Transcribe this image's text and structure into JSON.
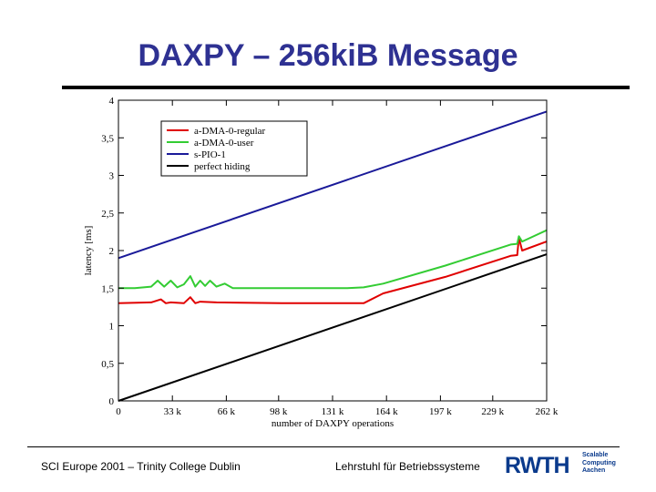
{
  "slide": {
    "title": "DAXPY – 256kiB Message",
    "footer_left": "SCI Europe 2001 – Trinity College Dublin",
    "footer_right": "Lehrstuhl für Betriebssysteme",
    "logo": {
      "main": "RWTH",
      "sub_lines": [
        "Scalable",
        "Computing",
        "Aachen"
      ],
      "color": "#0a3a8c"
    }
  },
  "chart_data": {
    "type": "line",
    "title": "",
    "xlabel": "number of DAXPY operations",
    "ylabel": "latency [ms]",
    "xlim": [
      0,
      262
    ],
    "ylim": [
      0,
      4
    ],
    "x_ticks": [
      0,
      33,
      66,
      98,
      131,
      164,
      197,
      229,
      262
    ],
    "x_tick_labels": [
      "0",
      "33 k",
      "66 k",
      "98 k",
      "131 k",
      "164 k",
      "197 k",
      "229 k",
      "262 k"
    ],
    "y_ticks": [
      0,
      0.5,
      1,
      1.5,
      2,
      2.5,
      3,
      3.5,
      4
    ],
    "y_tick_labels": [
      "0",
      "0,5",
      "1",
      "1,5",
      "2",
      "2,5",
      "3",
      "3,5",
      "4"
    ],
    "grid": false,
    "legend_position": "top-left",
    "series": [
      {
        "name": "a-DMA-0-regular",
        "color": "#e00000",
        "x": [
          0,
          20,
          26,
          29,
          32,
          40,
          44,
          47,
          50,
          60,
          100,
          140,
          150,
          162,
          200,
          240,
          244,
          245,
          247,
          262
        ],
        "y": [
          1.3,
          1.31,
          1.35,
          1.3,
          1.31,
          1.3,
          1.38,
          1.3,
          1.32,
          1.31,
          1.3,
          1.3,
          1.3,
          1.43,
          1.65,
          1.93,
          1.94,
          2.17,
          2.0,
          2.12
        ]
      },
      {
        "name": "a-DMA-0-user",
        "color": "#33cc33",
        "x": [
          0,
          10,
          20,
          24,
          28,
          32,
          36,
          40,
          44,
          47,
          50,
          53,
          56,
          60,
          65,
          70,
          100,
          140,
          150,
          162,
          200,
          240,
          244,
          245,
          247,
          262
        ],
        "y": [
          1.5,
          1.5,
          1.52,
          1.6,
          1.52,
          1.6,
          1.51,
          1.55,
          1.66,
          1.52,
          1.6,
          1.53,
          1.6,
          1.52,
          1.56,
          1.5,
          1.5,
          1.5,
          1.51,
          1.56,
          1.8,
          2.08,
          2.09,
          2.19,
          2.12,
          2.27
        ]
      },
      {
        "name": "s-PIO-1",
        "color": "#1a1a99",
        "x": [
          0,
          262
        ],
        "y": [
          1.9,
          3.85
        ]
      },
      {
        "name": "perfect hiding",
        "color": "#000000",
        "x": [
          0,
          262
        ],
        "y": [
          0,
          1.95
        ]
      }
    ]
  }
}
